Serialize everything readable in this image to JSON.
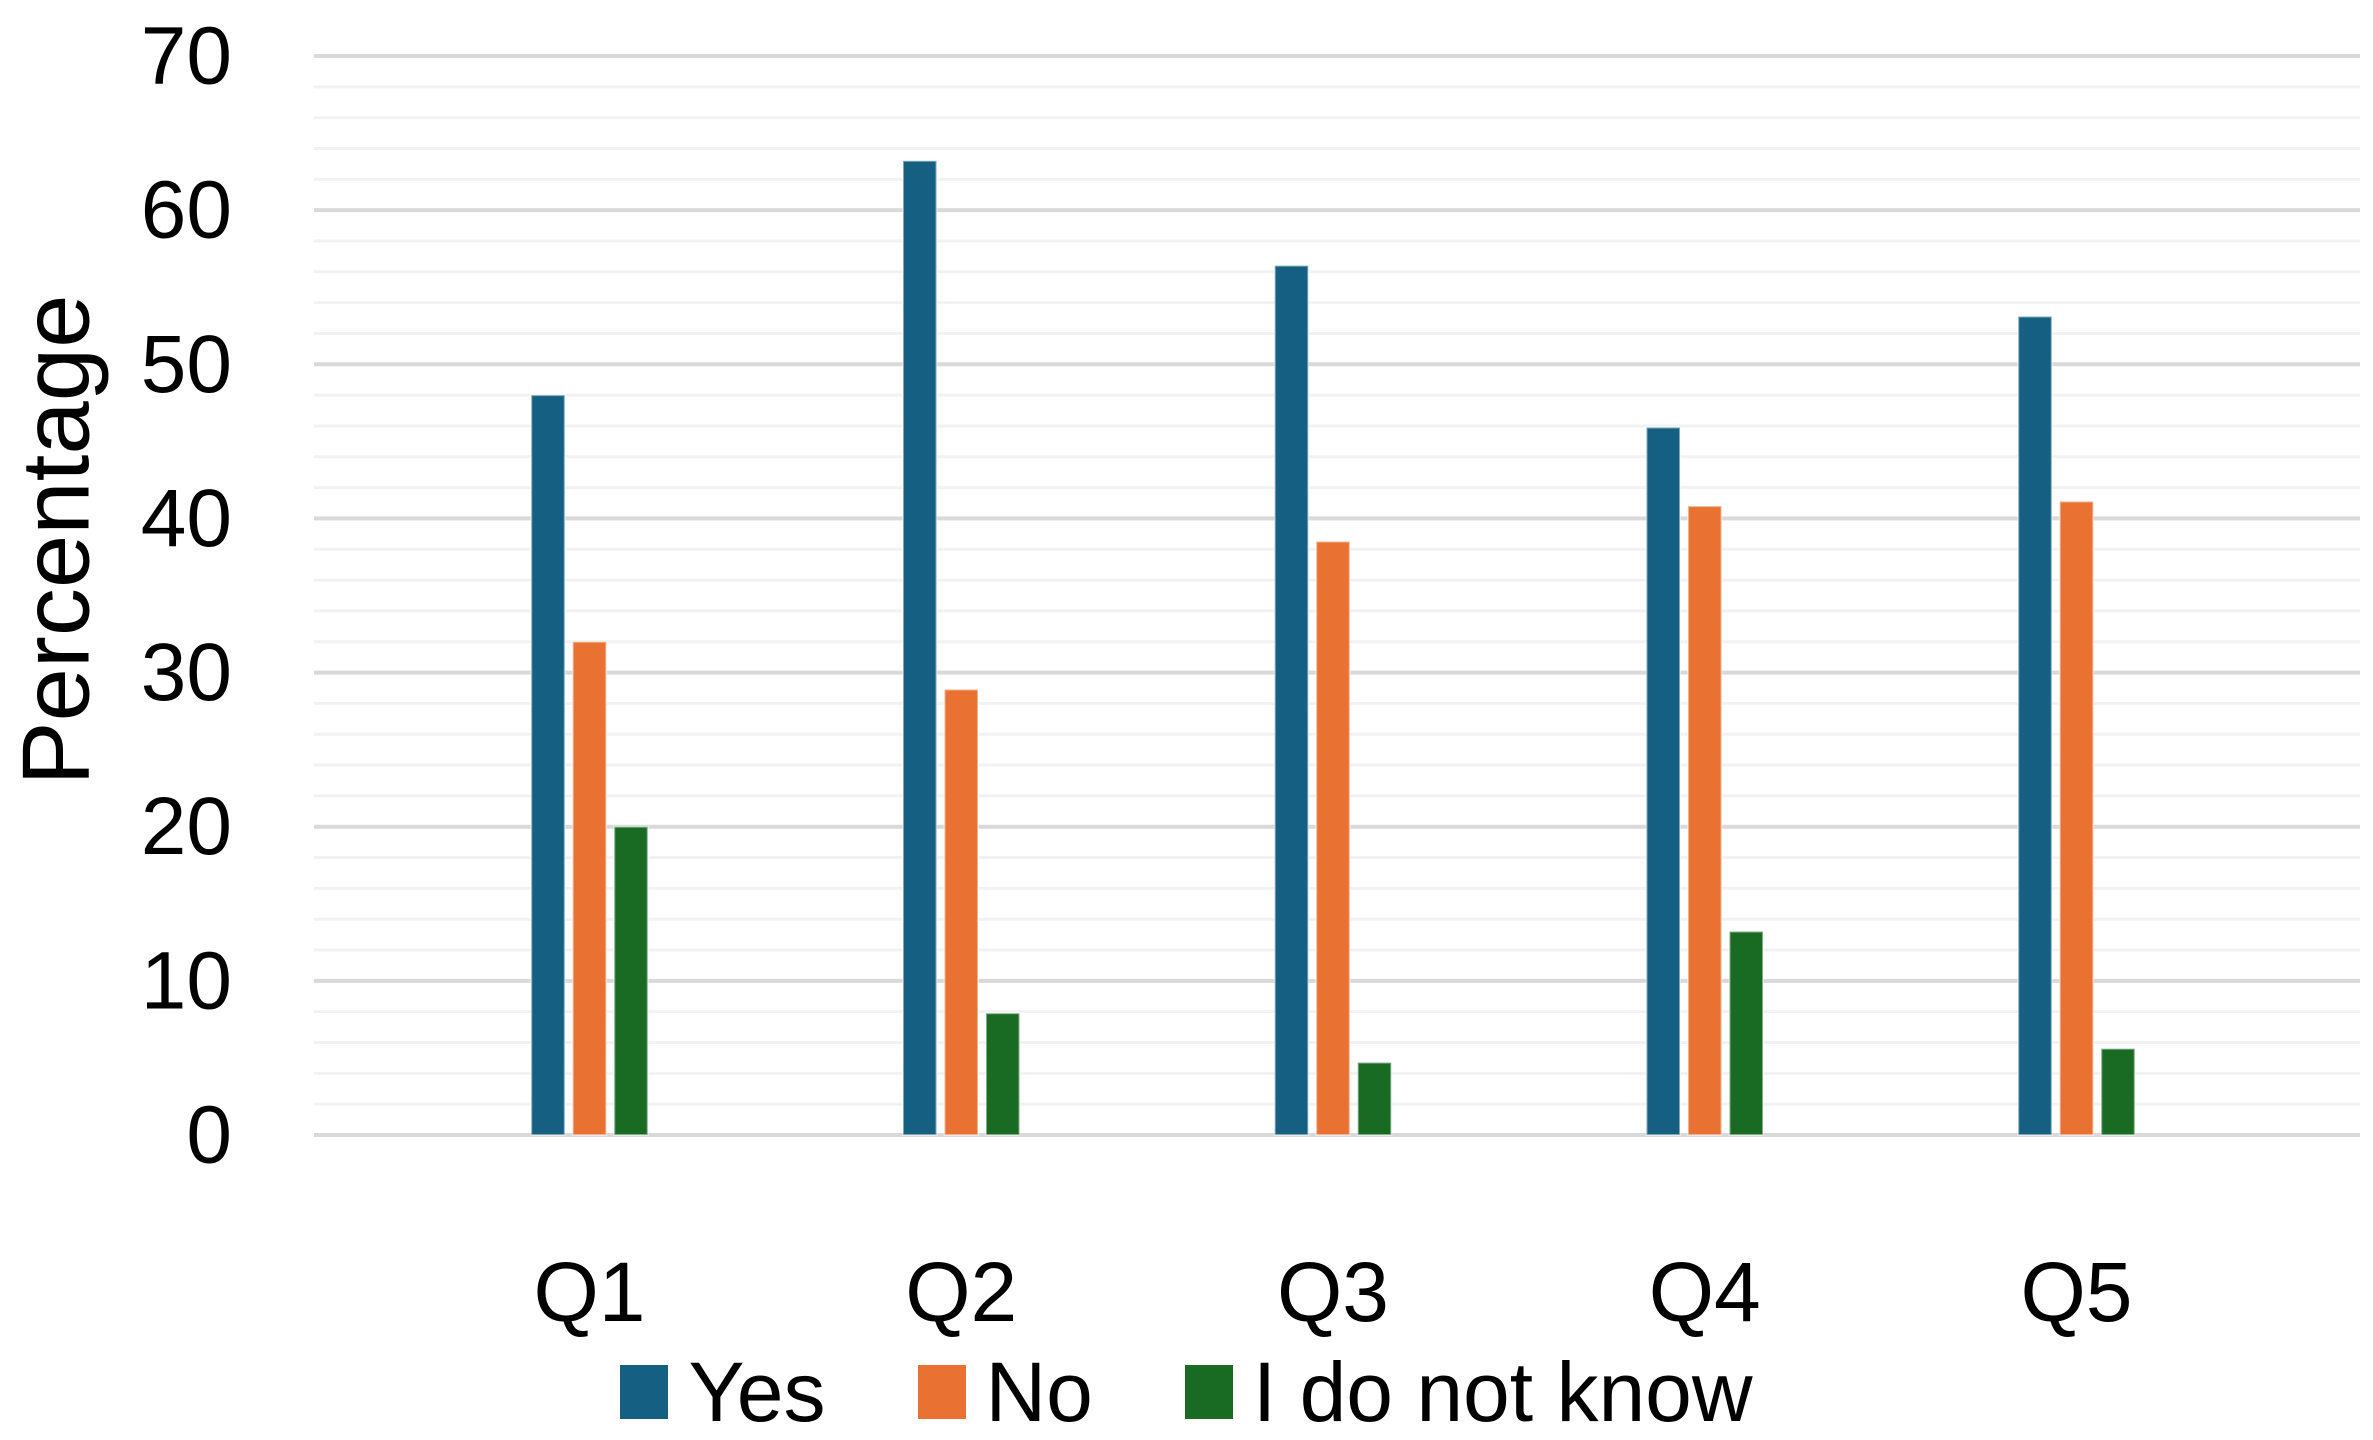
{
  "chart_data": {
    "type": "bar",
    "title": "",
    "xlabel": "",
    "ylabel": "Percentage",
    "categories": [
      "Q1",
      "Q2",
      "Q3",
      "Q4",
      "Q5"
    ],
    "series": [
      {
        "name": "Yes",
        "color": "#156082",
        "values": [
          48,
          63.2,
          56.4,
          45.9,
          53.1
        ]
      },
      {
        "name": "No",
        "color": "#E97132",
        "values": [
          32,
          28.9,
          38.5,
          40.8,
          41.1
        ]
      },
      {
        "name": "I do not know",
        "color": "#196B24",
        "values": [
          20,
          7.9,
          4.7,
          13.2,
          5.6
        ]
      }
    ],
    "ylim": [
      0,
      70
    ],
    "y_ticks": [
      "0",
      "10",
      "20",
      "30",
      "40",
      "50",
      "60",
      "70"
    ],
    "y_major_step": 10,
    "y_minor_step": 2,
    "grid": true,
    "major_grid_color": "#D9D9D9",
    "minor_grid_color": "#F2F2F2",
    "legend_position": "bottom"
  }
}
